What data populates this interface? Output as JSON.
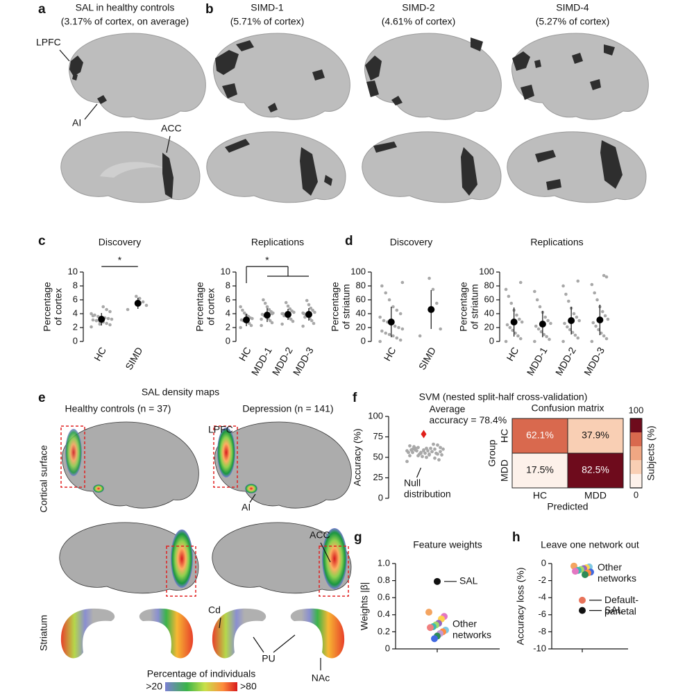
{
  "figure": {
    "labels": [
      "a",
      "b",
      "c",
      "d",
      "e",
      "f",
      "g",
      "h"
    ],
    "a": {
      "title": "SAL in healthy controls",
      "subtitle": "(3.17% of cortex, on average)",
      "regions": [
        "LPFC",
        "AI",
        "ACC"
      ]
    },
    "b": [
      {
        "title": "SIMD-1",
        "subtitle": "(5.71% of cortex)"
      },
      {
        "title": "SIMD-2",
        "subtitle": "(4.61% of cortex)"
      },
      {
        "title": "SIMD-4",
        "subtitle": "(5.27% of cortex)"
      }
    ],
    "e": {
      "title": "SAL density maps",
      "groups": [
        "Healthy controls (n = 37)",
        "Depression (n = 141)"
      ],
      "rows": [
        "Cortical surface",
        "Striatum"
      ],
      "regions": [
        "LPFC",
        "AI",
        "ACC",
        "Cd",
        "PU",
        "NAc"
      ],
      "colorbar": {
        "title": "Percentage of individuals",
        "low": ">20",
        "high": ">80"
      }
    },
    "f": {
      "title": "SVM (nested split-half cross-validation)"
    }
  },
  "chart_data": [
    {
      "type": "strip",
      "title": "Discovery",
      "ylabel": "Percentage of cortex",
      "categories": [
        "HC",
        "SIMD"
      ],
      "ylim": [
        0,
        10
      ],
      "yticks": [
        0,
        2,
        4,
        6,
        8,
        10
      ],
      "means": [
        3.2,
        5.5
      ],
      "errors": [
        0.9,
        0.8
      ],
      "significance": "*",
      "points": [
        [
          2.1,
          2.4,
          2.6,
          2.8,
          2.9,
          3.0,
          3.1,
          3.2,
          3.3,
          3.4,
          3.5,
          3.6,
          3.8,
          4.0,
          4.3,
          4.6,
          5.0,
          2.5,
          3.0,
          3.7
        ],
        [
          4.6,
          5.2,
          5.7,
          6.2,
          6.5
        ]
      ]
    },
    {
      "type": "strip",
      "title": "Replications",
      "ylabel": "Percentage of cortex",
      "categories": [
        "HC",
        "MDD-1",
        "MDD-2",
        "MDD-3"
      ],
      "ylim": [
        0,
        10
      ],
      "yticks": [
        0,
        2,
        4,
        6,
        8,
        10
      ],
      "means": [
        3.1,
        3.8,
        3.9,
        3.9
      ],
      "errors": [
        0.9,
        1.0,
        0.8,
        0.9
      ],
      "significance": "*",
      "points": [
        [
          2.0,
          2.3,
          2.6,
          2.8,
          2.9,
          3.0,
          3.1,
          3.3,
          3.4,
          3.6,
          3.8,
          4.1,
          4.5,
          5.0
        ],
        [
          2.3,
          2.7,
          3.0,
          3.3,
          3.5,
          3.7,
          3.9,
          4.1,
          4.3,
          4.6,
          5.0,
          5.5,
          6.0,
          3.2,
          4.0
        ],
        [
          2.5,
          2.9,
          3.2,
          3.4,
          3.6,
          3.8,
          4.0,
          4.2,
          4.4,
          4.7,
          5.1,
          5.6,
          3.7,
          4.0
        ],
        [
          2.2,
          2.6,
          3.0,
          3.3,
          3.6,
          3.8,
          4.0,
          4.2,
          4.5,
          4.8,
          5.3,
          5.9,
          3.5,
          4.1
        ]
      ]
    },
    {
      "type": "strip",
      "title": "Discovery",
      "ylabel": "Percentage of striatum",
      "categories": [
        "HC",
        "SIMD"
      ],
      "ylim": [
        0,
        100
      ],
      "yticks": [
        0,
        20,
        40,
        60,
        80,
        100
      ],
      "means": [
        28,
        46
      ],
      "errors": [
        22,
        28
      ],
      "points": [
        [
          0,
          2,
          5,
          8,
          10,
          12,
          15,
          18,
          20,
          22,
          25,
          28,
          30,
          35,
          40,
          45,
          50,
          60,
          70,
          80,
          85
        ],
        [
          8,
          18,
          55,
          75,
          91
        ]
      ]
    },
    {
      "type": "strip",
      "title": "Replications",
      "ylabel": "Percentage of striatum",
      "categories": [
        "HC",
        "MDD-1",
        "MDD-2",
        "MDD-3"
      ],
      "ylim": [
        0,
        100
      ],
      "yticks": [
        0,
        20,
        40,
        60,
        80,
        100
      ],
      "means": [
        28,
        25,
        30,
        31
      ],
      "errors": [
        21,
        19,
        20,
        22
      ],
      "points": [
        [
          0,
          4,
          8,
          12,
          16,
          20,
          24,
          28,
          32,
          38,
          45,
          55,
          65,
          75,
          85
        ],
        [
          0,
          3,
          7,
          10,
          14,
          18,
          22,
          26,
          30,
          35,
          42,
          50,
          60,
          72
        ],
        [
          0,
          5,
          9,
          13,
          17,
          21,
          26,
          30,
          35,
          40,
          48,
          58,
          68,
          80,
          87
        ],
        [
          0,
          4,
          8,
          12,
          17,
          22,
          27,
          32,
          37,
          43,
          50,
          60,
          70,
          82,
          93,
          95
        ]
      ]
    },
    {
      "type": "swarm",
      "ylabel": "Accuracy (%)",
      "ylim": [
        0,
        100
      ],
      "yticks": [
        0,
        25,
        50,
        75,
        100
      ],
      "null_label": "Null distribution",
      "average_label": "Average accuracy = 78.4%",
      "average": 78.4,
      "average_color": "#e0201b",
      "null": [
        45,
        47,
        49,
        50,
        51,
        52,
        52,
        53,
        54,
        54,
        55,
        55,
        56,
        56,
        57,
        57,
        58,
        58,
        59,
        59,
        60,
        60,
        61,
        61,
        62,
        63,
        64,
        65,
        66,
        53,
        56,
        58,
        60,
        62,
        55,
        57,
        59,
        54,
        61,
        58
      ]
    },
    {
      "type": "heatmap",
      "title": "Confusion matrix",
      "ylabel": "Group",
      "xlabel": "Predicted",
      "rows": [
        "HC",
        "MDD"
      ],
      "columns": [
        "HC",
        "MDD"
      ],
      "values": [
        [
          62.1,
          37.9
        ],
        [
          17.5,
          82.5
        ]
      ],
      "value_labels": [
        [
          "62.1%",
          "37.9%"
        ],
        [
          "17.5%",
          "82.5%"
        ]
      ],
      "clim": [
        0,
        100
      ],
      "cticks": [
        0,
        100
      ],
      "clabel": "Subjects (%)",
      "colors": [
        "#fdf1ea",
        "#f9cfb4",
        "#f0a783",
        "#d9694e",
        "#6e0b1c"
      ]
    },
    {
      "type": "dots",
      "title": "Feature weights",
      "ylabel": "Weights |β|",
      "ylim": [
        0,
        1
      ],
      "yticks": [
        0,
        0.2,
        0.4,
        0.6,
        0.8,
        {
          "value": 1,
          "label": "1.0"
        }
      ],
      "series": [
        {
          "name": "SAL",
          "color": "#111111",
          "values": [
            0.79
          ]
        },
        {
          "name": "Other networks",
          "values": [
            0.43,
            0.38,
            0.35,
            0.3,
            0.28,
            0.26,
            0.25,
            0.22,
            0.2,
            0.18,
            0.15,
            0.12
          ],
          "colors": [
            "#f4a460",
            "#e377c2",
            "#ffd24d",
            "#9467bd",
            "#a0d86b",
            "#3fb8af",
            "#f08080",
            "#7ec8e3",
            "#ff8c42",
            "#c39bd3",
            "#2e8b57",
            "#4169e1"
          ]
        }
      ]
    },
    {
      "type": "dots",
      "title": "Leave one network out",
      "ylabel": "Accuracy loss (%)",
      "ylim": [
        -10,
        0
      ],
      "yticks": [
        -10,
        -8,
        -6,
        -4,
        -2,
        0
      ],
      "series": [
        {
          "name": "SAL",
          "color": "#111111",
          "values": [
            -5.5
          ]
        },
        {
          "name": "Default-parietal",
          "color": "#e8735a",
          "values": [
            -4.3
          ]
        },
        {
          "name": "Other networks",
          "values": [
            -0.3,
            -0.4,
            -0.5,
            -0.6,
            -0.7,
            -0.8,
            -0.9,
            -1.0,
            -1.1,
            -1.3
          ],
          "colors": [
            "#f4a460",
            "#7ec8e3",
            "#ffd24d",
            "#9467bd",
            "#a0d86b",
            "#3fb8af",
            "#e377c2",
            "#4169e1",
            "#ff8c42",
            "#2e8b57"
          ]
        }
      ]
    }
  ]
}
